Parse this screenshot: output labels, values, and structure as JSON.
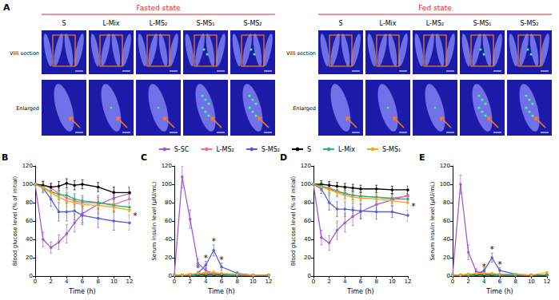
{
  "panel_a": {
    "label": "A",
    "groups": [
      {
        "title": "Fasted state",
        "columns": [
          "S",
          "L-Mix",
          "L-MS₂",
          "S-MS₁",
          "S-MS₂"
        ]
      },
      {
        "title": "Fed state",
        "columns": [
          "S",
          "L-Mix",
          "L-MS₂",
          "S-MS₁",
          "S-MS₂"
        ]
      }
    ],
    "rows": [
      "Villi section",
      "Enlarged"
    ]
  },
  "chart_data": [
    {
      "type": "line",
      "title": "B",
      "x_label": "Time (h)",
      "y_label": "Blood glucose level (% of initial)",
      "xlim": [
        0,
        12
      ],
      "xticks": [
        0,
        2,
        4,
        6,
        8,
        10,
        12
      ],
      "ylim": [
        0,
        120
      ],
      "yticks": [
        0,
        20,
        40,
        60,
        80,
        100,
        120
      ],
      "legend": "top",
      "marker": "circle",
      "grid": false,
      "x": [
        0,
        1,
        2,
        3,
        4,
        5,
        6,
        8,
        10,
        12
      ],
      "series": [
        {
          "name": "S-SC",
          "color": "#a35bd1",
          "values": [
            100,
            40,
            31,
            37,
            46,
            58,
            68,
            78,
            85,
            90
          ],
          "errors": [
            0,
            8,
            6,
            8,
            10,
            10,
            10,
            10,
            8,
            6
          ]
        },
        {
          "name": "L-MS₂",
          "color": "#ec6f9e",
          "values": [
            100,
            99,
            96,
            90,
            85,
            82,
            80,
            80,
            78,
            84
          ],
          "errors": [
            0,
            5,
            5,
            6,
            6,
            6,
            6,
            6,
            6,
            5
          ]
        },
        {
          "name": "S-MS₂",
          "color": "#5662c9",
          "values": [
            100,
            96,
            84,
            70,
            70,
            71,
            66,
            63,
            60,
            58
          ],
          "errors": [
            0,
            5,
            8,
            10,
            10,
            10,
            10,
            10,
            10,
            8
          ]
        },
        {
          "name": "S",
          "color": "#000000",
          "values": [
            100,
            99,
            97,
            98,
            101,
            99,
            100,
            97,
            91,
            91
          ],
          "errors": [
            0,
            4,
            4,
            5,
            5,
            5,
            5,
            5,
            6,
            6
          ]
        },
        {
          "name": "L-Mix",
          "color": "#22b573",
          "values": [
            100,
            97,
            92,
            89,
            88,
            84,
            82,
            80,
            77,
            75
          ],
          "errors": [
            0,
            5,
            5,
            6,
            6,
            6,
            6,
            6,
            6,
            5
          ]
        },
        {
          "name": "S-MS₁",
          "color": "#f5a623",
          "values": [
            100,
            96,
            91,
            86,
            82,
            80,
            78,
            77,
            75,
            72
          ],
          "errors": [
            0,
            5,
            5,
            6,
            6,
            6,
            6,
            6,
            6,
            5
          ]
        }
      ],
      "annotations": [
        {
          "text": "*",
          "x": 12.7,
          "y": 66
        }
      ]
    },
    {
      "type": "line",
      "title": "C",
      "x_label": "Time (h)",
      "y_label": "Serum insulin level (μIU/mL)",
      "xlim": [
        0,
        12
      ],
      "xticks": [
        0,
        2,
        4,
        6,
        8,
        10,
        12
      ],
      "ylim": [
        0,
        120
      ],
      "yticks": [
        0,
        20,
        40,
        60,
        80,
        100,
        120
      ],
      "legend": "top",
      "marker": "circle",
      "grid": false,
      "x": [
        0,
        1,
        2,
        3,
        4,
        5,
        6,
        8,
        10,
        12
      ],
      "series": [
        {
          "name": "S-SC",
          "color": "#a35bd1",
          "values": [
            1,
            108,
            62,
            14,
            6,
            3,
            2,
            1,
            1,
            1
          ],
          "errors": [
            0,
            12,
            10,
            5,
            3,
            2,
            1,
            1,
            1,
            1
          ]
        },
        {
          "name": "L-MS₂",
          "color": "#ec6f9e",
          "values": [
            1,
            1,
            2,
            2,
            3,
            3,
            2,
            2,
            1,
            1
          ],
          "errors": [
            0,
            1,
            1,
            1,
            1,
            1,
            1,
            1,
            1,
            1
          ]
        },
        {
          "name": "S-MS₂",
          "color": "#5662c9",
          "values": [
            1,
            1,
            1,
            3,
            12,
            28,
            10,
            3,
            1,
            1
          ],
          "errors": [
            0,
            1,
            1,
            2,
            4,
            6,
            4,
            2,
            1,
            1
          ]
        },
        {
          "name": "S",
          "color": "#000000",
          "values": [
            1,
            1,
            1,
            1,
            1,
            1,
            1,
            1,
            1,
            1
          ],
          "errors": [
            0,
            1,
            1,
            1,
            1,
            1,
            1,
            1,
            1,
            1
          ]
        },
        {
          "name": "L-Mix",
          "color": "#22b573",
          "values": [
            1,
            1,
            1,
            2,
            2,
            2,
            2,
            1,
            1,
            1
          ],
          "errors": [
            0,
            1,
            1,
            1,
            1,
            1,
            1,
            1,
            1,
            1
          ]
        },
        {
          "name": "S-MS₁",
          "color": "#f5a623",
          "values": [
            1,
            1,
            2,
            3,
            4,
            4,
            3,
            2,
            1,
            1
          ],
          "errors": [
            0,
            1,
            1,
            1,
            2,
            2,
            1,
            1,
            1,
            1
          ]
        }
      ],
      "annotations": [
        {
          "text": "*",
          "x": 3,
          "y": 9
        },
        {
          "text": "*",
          "x": 4,
          "y": 20
        },
        {
          "text": "*",
          "x": 5,
          "y": 38
        },
        {
          "text": "*",
          "x": 6,
          "y": 18
        }
      ]
    },
    {
      "type": "line",
      "title": "D",
      "x_label": "Time (h)",
      "y_label": "Blood glucose level (% of initial)",
      "xlim": [
        0,
        12
      ],
      "xticks": [
        0,
        2,
        4,
        6,
        8,
        10,
        12
      ],
      "ylim": [
        0,
        120
      ],
      "yticks": [
        0,
        20,
        40,
        60,
        80,
        100,
        120
      ],
      "legend": "top",
      "marker": "circle",
      "grid": false,
      "x": [
        0,
        1,
        2,
        3,
        4,
        5,
        6,
        8,
        10,
        12
      ],
      "series": [
        {
          "name": "S-SC",
          "color": "#a35bd1",
          "values": [
            100,
            42,
            36,
            50,
            58,
            65,
            70,
            78,
            83,
            88
          ],
          "errors": [
            0,
            8,
            8,
            10,
            10,
            10,
            8,
            8,
            6,
            6
          ]
        },
        {
          "name": "L-MS₂",
          "color": "#ec6f9e",
          "values": [
            100,
            98,
            96,
            93,
            90,
            88,
            87,
            86,
            85,
            87
          ],
          "errors": [
            0,
            4,
            5,
            5,
            5,
            5,
            5,
            5,
            5,
            5
          ]
        },
        {
          "name": "S-MS₂",
          "color": "#5662c9",
          "values": [
            100,
            95,
            80,
            73,
            73,
            72,
            71,
            70,
            70,
            66
          ],
          "errors": [
            0,
            5,
            8,
            8,
            8,
            8,
            8,
            8,
            6,
            6
          ]
        },
        {
          "name": "S",
          "color": "#000000",
          "values": [
            100,
            100,
            99,
            98,
            97,
            96,
            95,
            95,
            94,
            94
          ],
          "errors": [
            0,
            4,
            4,
            4,
            4,
            4,
            4,
            4,
            4,
            4
          ]
        },
        {
          "name": "L-Mix",
          "color": "#22b573",
          "values": [
            100,
            98,
            95,
            92,
            90,
            88,
            87,
            86,
            84,
            84
          ],
          "errors": [
            0,
            4,
            5,
            5,
            5,
            5,
            5,
            5,
            5,
            5
          ]
        },
        {
          "name": "S-MS₁",
          "color": "#f5a623",
          "values": [
            100,
            97,
            94,
            91,
            88,
            86,
            85,
            84,
            82,
            80
          ],
          "errors": [
            0,
            4,
            5,
            5,
            5,
            5,
            5,
            5,
            5,
            5
          ]
        }
      ],
      "annotations": [
        {
          "text": "*",
          "x": 12.7,
          "y": 76
        }
      ]
    },
    {
      "type": "line",
      "title": "E",
      "x_label": "Time (h)",
      "y_label": "Serum insulin level (μIU/mL)",
      "xlim": [
        0,
        12
      ],
      "xticks": [
        0,
        2,
        4,
        6,
        8,
        10,
        12
      ],
      "ylim": [
        0,
        120
      ],
      "yticks": [
        0,
        20,
        40,
        60,
        80,
        100,
        120
      ],
      "legend": "top",
      "marker": "circle",
      "grid": false,
      "x": [
        0,
        1,
        2,
        3,
        4,
        5,
        6,
        8,
        10,
        12
      ],
      "series": [
        {
          "name": "S-SC",
          "color": "#a35bd1",
          "values": [
            1,
            100,
            26,
            5,
            3,
            2,
            1,
            1,
            1,
            1
          ],
          "errors": [
            0,
            10,
            8,
            3,
            2,
            1,
            1,
            1,
            1,
            1
          ]
        },
        {
          "name": "L-MS₂",
          "color": "#ec6f9e",
          "values": [
            1,
            1,
            2,
            2,
            3,
            2,
            2,
            1,
            1,
            1
          ],
          "errors": [
            0,
            1,
            1,
            1,
            1,
            1,
            1,
            1,
            1,
            1
          ]
        },
        {
          "name": "S-MS₂",
          "color": "#5662c9",
          "values": [
            1,
            1,
            1,
            2,
            6,
            20,
            6,
            2,
            1,
            1
          ],
          "errors": [
            0,
            1,
            1,
            1,
            3,
            5,
            3,
            1,
            1,
            1
          ]
        },
        {
          "name": "S",
          "color": "#000000",
          "values": [
            1,
            1,
            1,
            1,
            1,
            1,
            1,
            1,
            1,
            1
          ],
          "errors": [
            0,
            1,
            1,
            1,
            1,
            1,
            1,
            1,
            1,
            1
          ]
        },
        {
          "name": "L-Mix",
          "color": "#22b573",
          "values": [
            1,
            1,
            1,
            2,
            2,
            2,
            1,
            1,
            1,
            1
          ],
          "errors": [
            0,
            1,
            1,
            1,
            1,
            1,
            1,
            1,
            1,
            1
          ]
        },
        {
          "name": "S-MS₁",
          "color": "#f5a623",
          "values": [
            1,
            1,
            2,
            3,
            3,
            3,
            2,
            2,
            1,
            4
          ],
          "errors": [
            0,
            1,
            1,
            1,
            1,
            1,
            1,
            1,
            1,
            1
          ]
        }
      ],
      "annotations": [
        {
          "text": "*",
          "x": 4,
          "y": 10
        },
        {
          "text": "*",
          "x": 5,
          "y": 29
        },
        {
          "text": "*",
          "x": 6,
          "y": 13
        }
      ]
    }
  ]
}
